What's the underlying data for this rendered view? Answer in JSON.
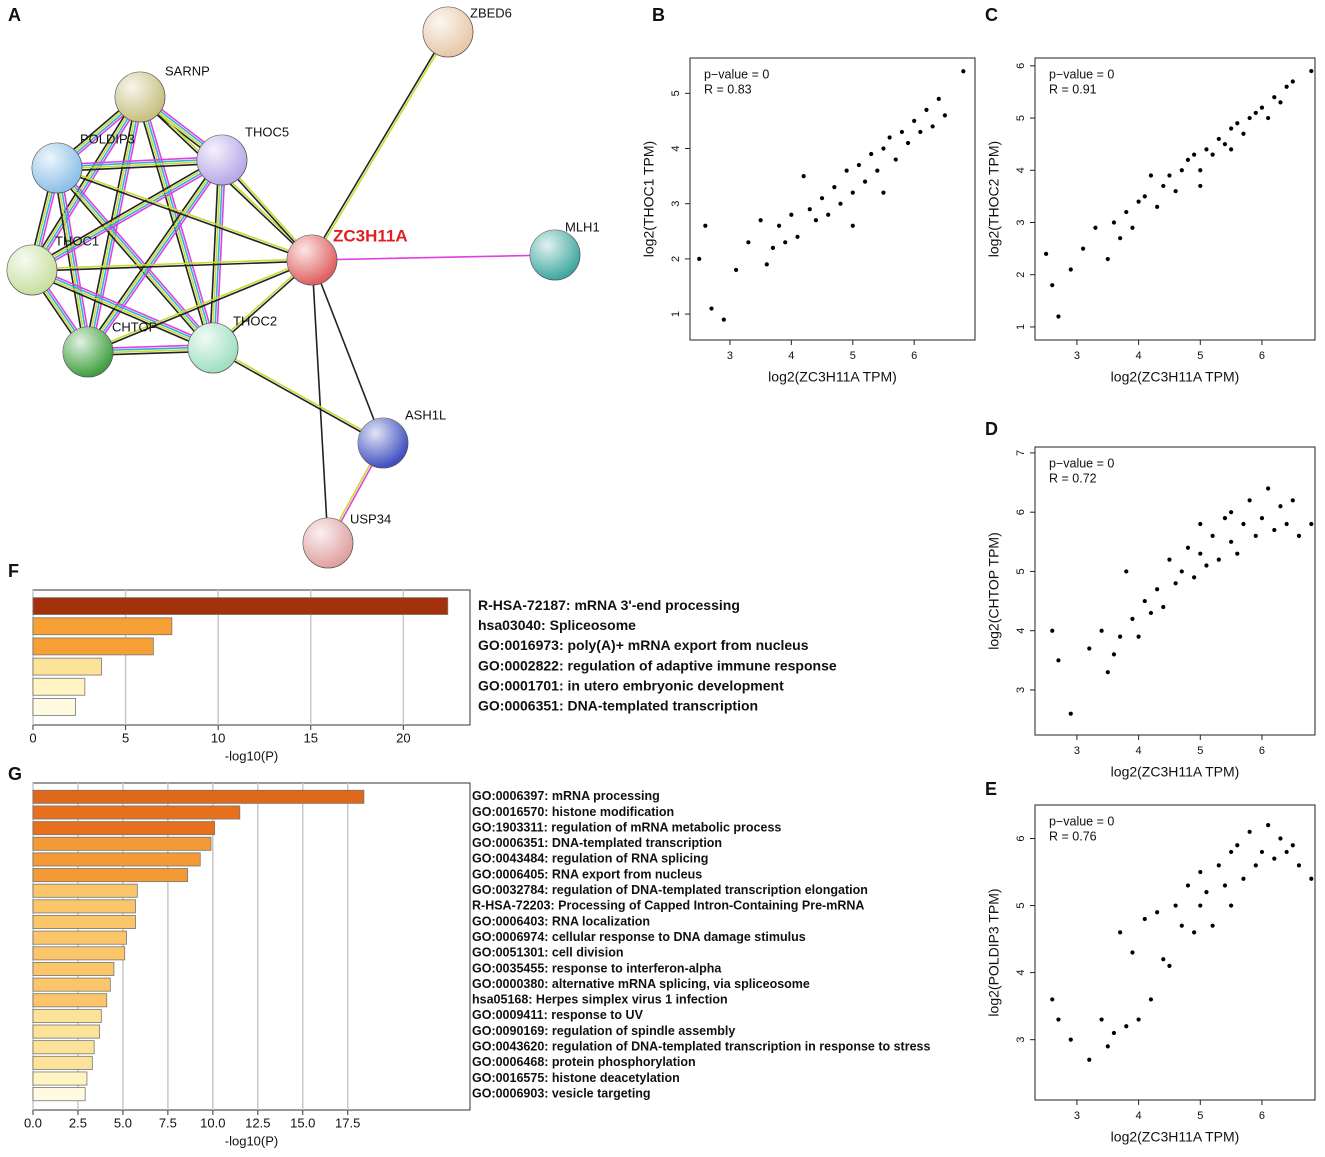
{
  "network": {
    "panel": "A",
    "nodes": [
      {
        "label": "ZBED6"
      },
      {
        "label": "SARNP"
      },
      {
        "label": "POLDIP3"
      },
      {
        "label": "THOC5"
      },
      {
        "label": "ZC3H11A"
      },
      {
        "label": "MLH1"
      },
      {
        "label": "THOC1"
      },
      {
        "label": "CHTOP"
      },
      {
        "label": "THOC2"
      },
      {
        "label": "ASH1L"
      },
      {
        "label": "USP34"
      }
    ]
  },
  "chart_data": [
    {
      "type": "scatter",
      "panel": "B",
      "xlabel": "log2(ZC3H11A TPM)",
      "ylabel": "log2(THOC1 TPM)",
      "annotations": [
        "p−value = 0",
        "R = 0.83"
      ],
      "xlim": [
        2.35,
        6.99
      ],
      "ylim": [
        0.53,
        5.64
      ],
      "xticks": [
        3,
        4,
        5,
        6
      ],
      "yticks": [
        1,
        2,
        3,
        4,
        5
      ],
      "color": "#000000",
      "x": [
        2.5,
        2.6,
        2.7,
        2.9,
        3.1,
        3.3,
        3.5,
        3.6,
        3.7,
        3.8,
        3.9,
        4.0,
        4.1,
        4.2,
        4.3,
        4.4,
        4.5,
        4.6,
        4.7,
        4.8,
        4.9,
        5.0,
        5.0,
        5.1,
        5.2,
        5.3,
        5.4,
        5.5,
        5.5,
        5.6,
        5.7,
        5.8,
        5.9,
        6.0,
        6.1,
        6.2,
        6.3,
        6.4,
        6.5,
        6.8
      ],
      "values": [
        2.0,
        2.6,
        1.1,
        0.9,
        1.8,
        2.3,
        2.7,
        1.9,
        2.2,
        2.6,
        2.3,
        2.8,
        2.4,
        3.5,
        2.9,
        2.7,
        3.1,
        2.8,
        3.3,
        3.0,
        3.6,
        3.2,
        2.6,
        3.7,
        3.4,
        3.9,
        3.6,
        4.0,
        3.2,
        4.2,
        3.8,
        4.3,
        4.1,
        4.5,
        4.3,
        4.7,
        4.4,
        4.9,
        4.6,
        5.4
      ]
    },
    {
      "type": "scatter",
      "panel": "C",
      "xlabel": "log2(ZC3H11A TPM)",
      "ylabel": "log2(THOC2 TPM)",
      "annotations": [
        "p−value = 0",
        "R = 0.91"
      ],
      "xlim": [
        2.32,
        6.86
      ],
      "ylim": [
        0.75,
        6.15
      ],
      "xticks": [
        3,
        4,
        5,
        6
      ],
      "yticks": [
        1,
        2,
        3,
        4,
        5,
        6
      ],
      "color": "#000000",
      "x": [
        2.5,
        2.6,
        2.7,
        2.9,
        3.1,
        3.3,
        3.5,
        3.6,
        3.7,
        3.8,
        3.9,
        4.0,
        4.1,
        4.2,
        4.3,
        4.4,
        4.5,
        4.6,
        4.7,
        4.8,
        4.9,
        5.0,
        5.0,
        5.1,
        5.2,
        5.3,
        5.4,
        5.5,
        5.5,
        5.6,
        5.7,
        5.8,
        5.9,
        6.0,
        6.1,
        6.2,
        6.3,
        6.4,
        6.5,
        6.8
      ],
      "values": [
        2.4,
        1.8,
        1.2,
        2.1,
        2.5,
        2.9,
        2.3,
        3.0,
        2.7,
        3.2,
        2.9,
        3.4,
        3.5,
        3.9,
        3.3,
        3.7,
        3.9,
        3.6,
        4.0,
        4.2,
        4.3,
        4.0,
        3.7,
        4.4,
        4.3,
        4.6,
        4.5,
        4.8,
        4.4,
        4.9,
        4.7,
        5.0,
        5.1,
        5.2,
        5.0,
        5.4,
        5.3,
        5.6,
        5.7,
        5.9
      ]
    },
    {
      "type": "scatter",
      "panel": "D",
      "xlabel": "log2(ZC3H11A TPM)",
      "ylabel": "log2(CHTOP TPM)",
      "annotations": [
        "p−value = 0",
        "R = 0.72"
      ],
      "xlim": [
        2.32,
        6.86
      ],
      "ylim": [
        2.24,
        7.1
      ],
      "xticks": [
        3,
        4,
        5,
        6
      ],
      "yticks": [
        3,
        4,
        5,
        6,
        7
      ],
      "color": "#000000",
      "x": [
        2.6,
        2.7,
        2.9,
        3.2,
        3.4,
        3.5,
        3.6,
        3.7,
        3.8,
        3.9,
        4.0,
        4.1,
        4.2,
        4.3,
        4.4,
        4.5,
        4.6,
        4.7,
        4.8,
        4.9,
        5.0,
        5.0,
        5.1,
        5.2,
        5.3,
        5.4,
        5.5,
        5.5,
        5.6,
        5.7,
        5.8,
        5.9,
        6.0,
        6.1,
        6.2,
        6.3,
        6.4,
        6.5,
        6.6,
        6.8
      ],
      "values": [
        4.0,
        3.5,
        2.6,
        3.7,
        4.0,
        3.3,
        3.6,
        3.9,
        5.0,
        4.2,
        3.9,
        4.5,
        4.3,
        4.7,
        4.4,
        5.2,
        4.8,
        5.0,
        5.4,
        4.9,
        5.3,
        5.8,
        5.1,
        5.6,
        5.2,
        5.9,
        5.5,
        6.0,
        5.3,
        5.8,
        6.2,
        5.6,
        5.9,
        6.4,
        5.7,
        6.1,
        5.8,
        6.2,
        5.6,
        5.8
      ]
    },
    {
      "type": "scatter",
      "panel": "E",
      "xlabel": "log2(ZC3H11A TPM)",
      "ylabel": "log2(POLDIP3 TPM)",
      "annotations": [
        "p−value = 0",
        "R = 0.76"
      ],
      "xlim": [
        2.32,
        6.86
      ],
      "ylim": [
        2.1,
        6.5
      ],
      "xticks": [
        3,
        4,
        5,
        6
      ],
      "yticks": [
        3,
        4,
        5,
        6
      ],
      "color": "#000000",
      "x": [
        2.6,
        2.7,
        2.9,
        3.2,
        3.4,
        3.5,
        3.6,
        3.7,
        3.8,
        3.9,
        4.0,
        4.1,
        4.2,
        4.3,
        4.4,
        4.5,
        4.6,
        4.7,
        4.8,
        4.9,
        5.0,
        5.0,
        5.1,
        5.2,
        5.3,
        5.4,
        5.5,
        5.5,
        5.6,
        5.7,
        5.8,
        5.9,
        6.0,
        6.1,
        6.2,
        6.3,
        6.4,
        6.5,
        6.6,
        6.8
      ],
      "values": [
        3.6,
        3.3,
        3.0,
        2.7,
        3.3,
        2.9,
        3.1,
        4.6,
        3.2,
        4.3,
        3.3,
        4.8,
        3.6,
        4.9,
        4.2,
        4.1,
        5.0,
        4.7,
        5.3,
        4.6,
        5.0,
        5.5,
        5.2,
        4.7,
        5.6,
        5.3,
        5.8,
        5.0,
        5.9,
        5.4,
        6.1,
        5.6,
        5.8,
        6.2,
        5.7,
        6.0,
        5.8,
        5.9,
        5.6,
        5.4
      ]
    },
    {
      "type": "barh",
      "panel": "F",
      "xlabel": "-log10(P)",
      "xlim": [
        0,
        23.6
      ],
      "xticks": [
        0,
        5,
        10,
        15,
        20
      ],
      "grid": true,
      "categories": [
        "R-HSA-72187: mRNA 3'-end processing",
        "hsa03040: Spliceosome",
        "GO:0016973: poly(A)+ mRNA export from nucleus",
        "GO:0002822: regulation of adaptive immune response",
        "GO:0001701: in utero embryonic development",
        "GO:0006351: DNA-templated transcription"
      ],
      "values": [
        22.4,
        7.5,
        6.5,
        3.7,
        2.8,
        2.3
      ],
      "colors": [
        "#a3310c",
        "#f7a035",
        "#f7a035",
        "#fde39a",
        "#fff4c2",
        "#fffbe3"
      ]
    },
    {
      "type": "barh",
      "panel": "G",
      "xlabel": "-log10(P)",
      "xlim": [
        0,
        24.3
      ],
      "grid": true,
      "xticks": [
        {
          "value": 0,
          "label": "0.0"
        },
        2.5,
        {
          "value": 5,
          "label": "5.0"
        },
        7.5,
        {
          "value": 10,
          "label": "10.0"
        },
        12.5,
        {
          "value": 15,
          "label": "15.0"
        },
        17.5
      ],
      "categories": [
        "GO:0006397: mRNA processing",
        "GO:0016570: histone modification",
        "GO:1903311: regulation of mRNA metabolic process",
        "GO:0006351: DNA-templated transcription",
        "GO:0043484: regulation of RNA splicing",
        "GO:0006405: RNA export from nucleus",
        "GO:0032784: regulation of DNA-templated transcription elongation",
        "R-HSA-72203: Processing of Capped Intron-Containing Pre-mRNA",
        "GO:0006403: RNA localization",
        "GO:0006974: cellular response to DNA damage stimulus",
        "GO:0051301: cell division",
        "GO:0035455: response to interferon-alpha",
        "GO:0000380: alternative mRNA splicing, via spliceosome",
        "hsa05168: Herpes simplex virus 1 infection",
        "GO:0009411: response to UV",
        "GO:0090169: regulation of spindle assembly",
        "GO:0043620: regulation of DNA-templated transcription in response to stress",
        "GO:0006468: protein phosphorylation",
        "GO:0016575: histone deacetylation",
        "GO:0006903: vesicle targeting"
      ],
      "values": [
        18.4,
        11.5,
        10.1,
        9.9,
        9.3,
        8.6,
        5.8,
        5.7,
        5.7,
        5.2,
        5.1,
        4.5,
        4.3,
        4.1,
        3.8,
        3.7,
        3.4,
        3.3,
        3.0,
        2.9
      ],
      "colors": [
        "#e0681a",
        "#e8701c",
        "#e8701c",
        "#f39a36",
        "#f39a36",
        "#f39a36",
        "#fbc56a",
        "#fbc56a",
        "#fbc56a",
        "#fbc56a",
        "#fbc56a",
        "#fbc56a",
        "#fbc56a",
        "#fbc56a",
        "#fde39a",
        "#fde39a",
        "#fde39a",
        "#fde39a",
        "#fff4c2",
        "#fffbe3"
      ]
    }
  ]
}
